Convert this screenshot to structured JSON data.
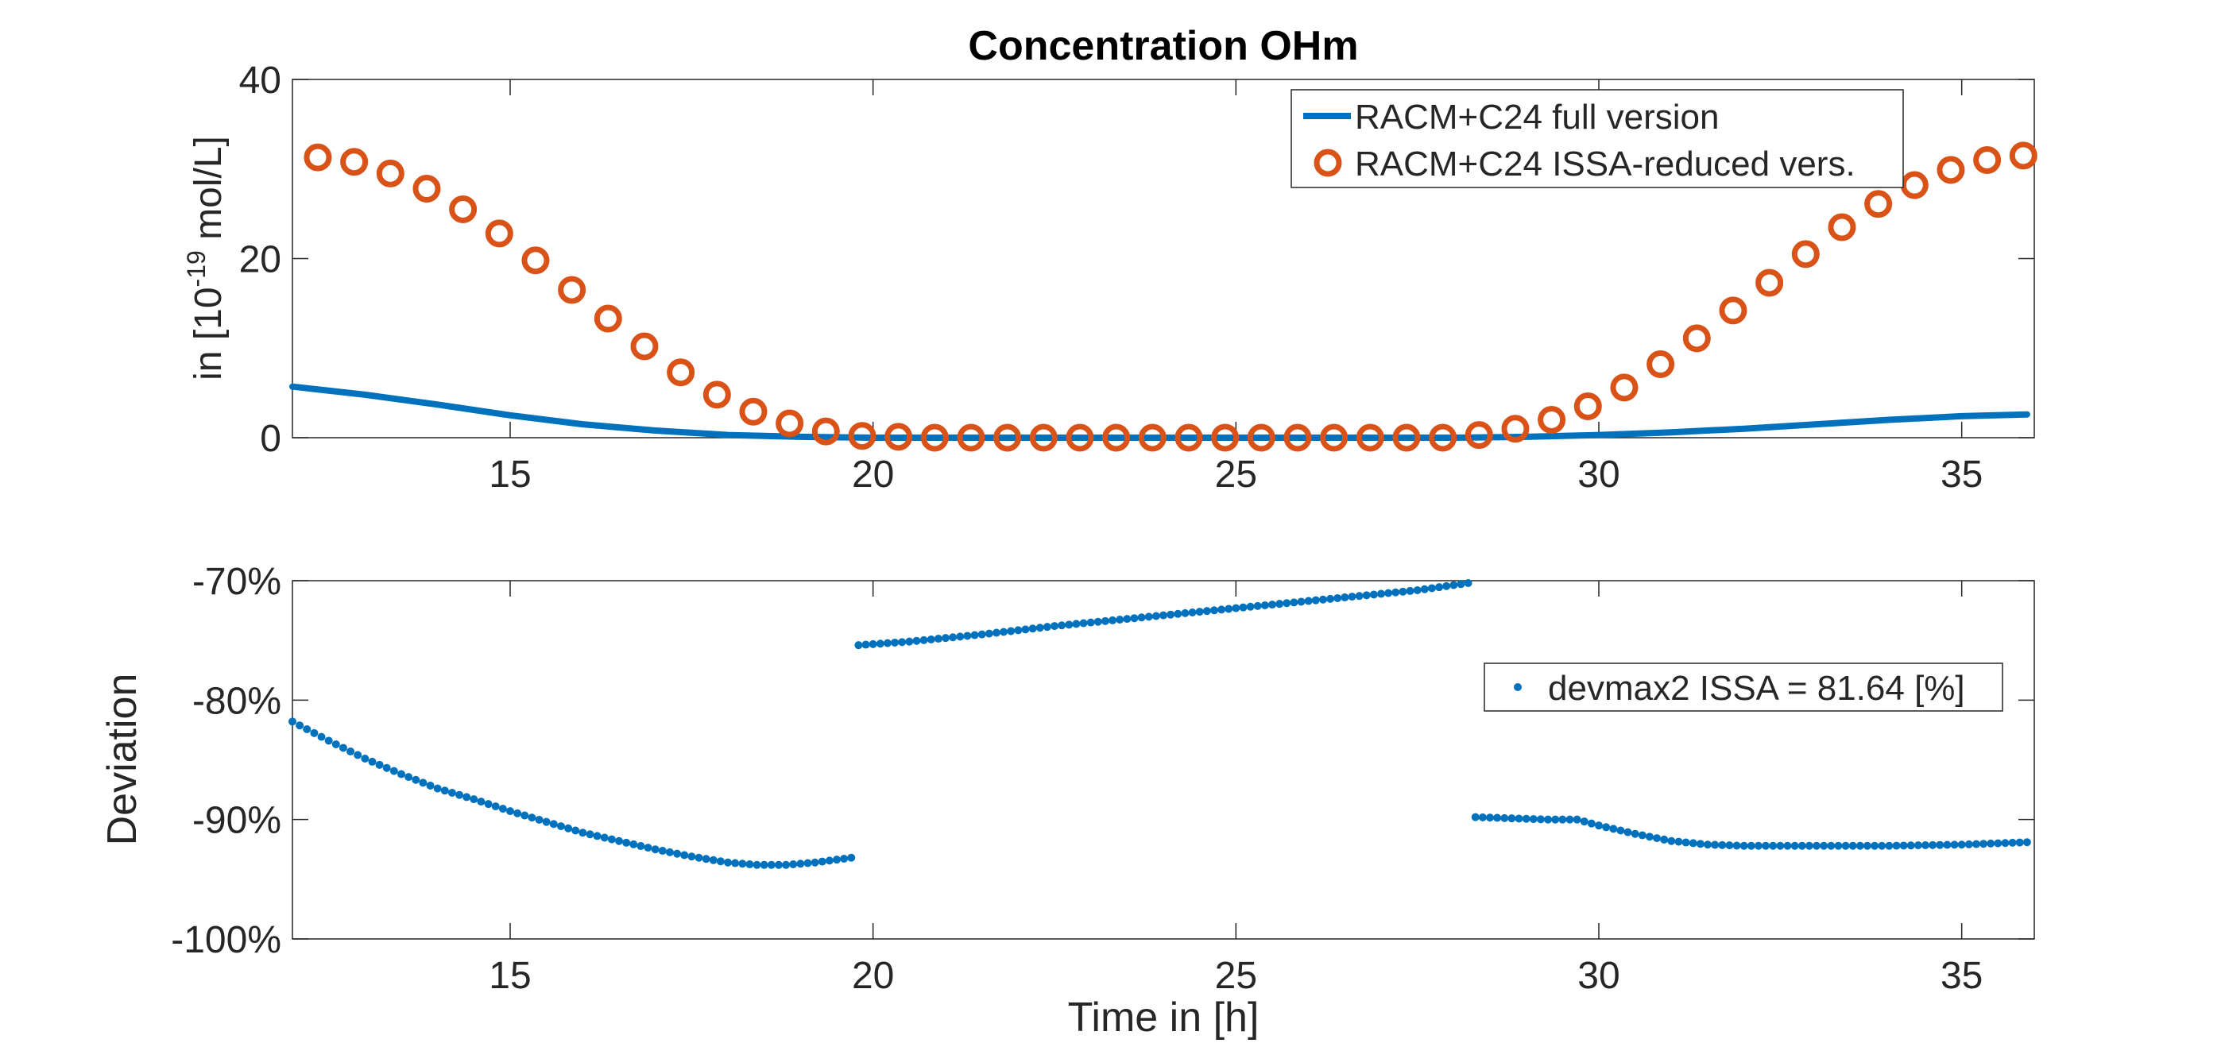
{
  "chart_data": [
    {
      "type": "line",
      "title": "Concentration OHm",
      "ylabel": {
        "prefix": "in [10",
        "exponent": "-19",
        "suffix": " mol/L]"
      },
      "xlabel": "",
      "xlim": [
        12,
        36
      ],
      "ylim": [
        0,
        40
      ],
      "xticks": [
        15,
        20,
        25,
        30,
        35
      ],
      "xtick_labels": [
        "15",
        "20",
        "25",
        "30",
        "35"
      ],
      "yticks": [
        0,
        20,
        40
      ],
      "ytick_labels": [
        "0",
        "20",
        "40"
      ],
      "grid": false,
      "legend_position": "top-right",
      "series": [
        {
          "name": "RACM+C24 full version",
          "style": "line",
          "color": "#0072BD",
          "x": [
            12,
            13,
            14,
            15,
            16,
            17,
            18,
            19,
            20,
            22,
            24,
            26,
            28,
            29,
            30,
            31,
            32,
            33,
            34,
            35,
            35.9
          ],
          "y": [
            5.7,
            4.8,
            3.7,
            2.5,
            1.5,
            0.8,
            0.3,
            0.1,
            0,
            0,
            0,
            0,
            0,
            0.1,
            0.3,
            0.6,
            1.0,
            1.5,
            2.0,
            2.4,
            2.6
          ]
        },
        {
          "name": "RACM+C24 ISSA-reduced vers.",
          "style": "markers",
          "marker": "circle",
          "color": "#D95319",
          "x": [
            12.35,
            12.85,
            13.35,
            13.85,
            14.35,
            14.85,
            15.35,
            15.85,
            16.35,
            16.85,
            17.35,
            17.85,
            18.35,
            18.85,
            19.35,
            19.85,
            20.35,
            20.85,
            21.35,
            21.85,
            22.35,
            22.85,
            23.35,
            23.85,
            24.35,
            24.85,
            25.35,
            25.85,
            26.35,
            26.85,
            27.35,
            27.85,
            28.35,
            28.85,
            29.35,
            29.85,
            30.35,
            30.85,
            31.35,
            31.85,
            32.35,
            32.85,
            33.35,
            33.85,
            34.35,
            34.85,
            35.35,
            35.85
          ],
          "y": [
            31.3,
            30.8,
            29.5,
            27.8,
            25.5,
            22.8,
            19.8,
            16.5,
            13.3,
            10.2,
            7.3,
            4.8,
            2.9,
            1.6,
            0.7,
            0.2,
            0.1,
            0,
            0,
            0,
            0,
            0,
            0,
            0,
            0,
            0,
            0,
            0,
            0,
            0,
            0,
            0,
            0.3,
            1.0,
            2.0,
            3.5,
            5.6,
            8.2,
            11.1,
            14.2,
            17.3,
            20.5,
            23.5,
            26.1,
            28.2,
            29.9,
            31.0,
            31.5
          ]
        }
      ]
    },
    {
      "type": "scatter",
      "title": "",
      "ylabel": "Deviation",
      "xlabel": "Time in [h]",
      "xlim": [
        12,
        36
      ],
      "ylim": [
        -100,
        -70
      ],
      "xticks": [
        15,
        20,
        25,
        30,
        35
      ],
      "xtick_labels": [
        "15",
        "20",
        "25",
        "30",
        "35"
      ],
      "yticks": [
        -70,
        -80,
        -90,
        -100
      ],
      "ytick_labels": [
        "-70%",
        "-80%",
        "-90%",
        "-100%"
      ],
      "grid": false,
      "legend_position": "right",
      "series": [
        {
          "name": "devmax2 ISSA = 81.64 [%]",
          "style": "dots",
          "color": "#0072BD",
          "x": [
            12.0,
            12.5,
            13.0,
            13.5,
            14.0,
            14.5,
            15.0,
            15.5,
            16.0,
            16.5,
            17.0,
            17.5,
            18.0,
            18.4,
            18.8,
            19.2,
            19.7,
            19.8,
            20.5,
            21.5,
            22.5,
            23.5,
            24.5,
            25.5,
            26.5,
            27.5,
            28.2,
            28.3,
            28.8,
            29.3,
            29.7,
            30.0,
            30.5,
            31.0,
            31.5,
            32.0,
            33.0,
            34.0,
            35.0,
            35.9
          ],
          "y": [
            -81.8,
            -83.4,
            -84.9,
            -86.2,
            -87.4,
            -88.3,
            -89.3,
            -90.2,
            -91.1,
            -91.8,
            -92.5,
            -93.1,
            -93.6,
            -93.8,
            -93.8,
            -93.6,
            -93.2,
            -75.4,
            -75.1,
            -74.5,
            -73.8,
            -73.2,
            -72.6,
            -72.0,
            -71.4,
            -70.8,
            -70.2,
            -89.8,
            -89.9,
            -90.0,
            -90.0,
            -90.5,
            -91.2,
            -91.8,
            -92.1,
            -92.2,
            -92.2,
            -92.2,
            -92.1,
            -91.9
          ]
        }
      ]
    }
  ]
}
